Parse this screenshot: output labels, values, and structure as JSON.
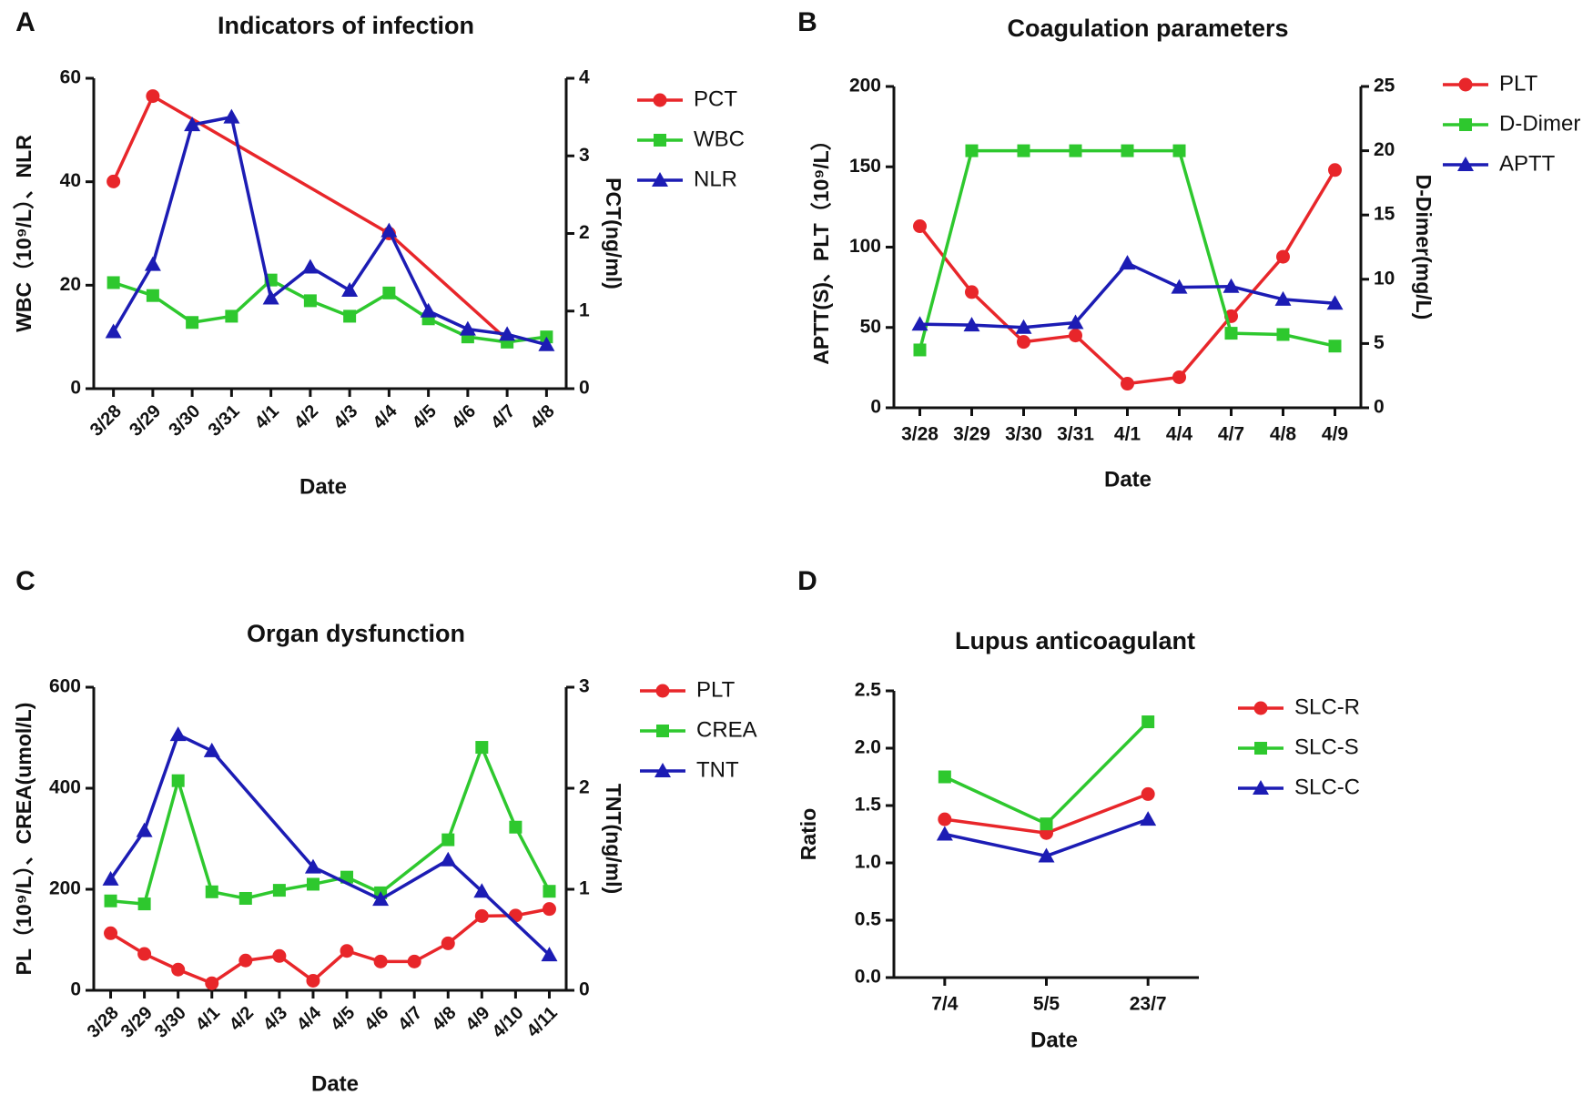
{
  "chart_data": [
    {
      "type": "line",
      "panel": "A",
      "title": "Indicators of infection",
      "x_label": "Date",
      "y_label": "WBC（10⁹/L）、NLR",
      "y2_label": "PCT(ng/ml)",
      "categories": [
        "3/28",
        "3/29",
        "3/30",
        "3/31",
        "4/1",
        "4/2",
        "4/3",
        "4/4",
        "4/5",
        "4/6",
        "4/7",
        "4/8"
      ],
      "ylim": [
        0,
        60
      ],
      "yticks": [
        0,
        20,
        40,
        60
      ],
      "y2lim": [
        0,
        4
      ],
      "y2ticks": [
        0,
        1,
        2,
        3,
        4
      ],
      "series": [
        {
          "name": "PCT",
          "color": "#e8262a",
          "marker": "circle",
          "axis": "y2",
          "values": [
            2.67,
            3.77,
            null,
            null,
            null,
            null,
            null,
            2.0,
            null,
            null,
            0.63,
            null
          ]
        },
        {
          "name": "WBC",
          "color": "#2ec82e",
          "marker": "square",
          "values": [
            20.5,
            18,
            12.8,
            14,
            21,
            17,
            14,
            18.5,
            13.5,
            10,
            9,
            10
          ]
        },
        {
          "name": "NLR",
          "color": "#1c1cb4",
          "marker": "triangle",
          "values": [
            11,
            24,
            51,
            52.5,
            17.5,
            23.5,
            19,
            30.5,
            15,
            11.5,
            10.5,
            8.5
          ]
        }
      ]
    },
    {
      "type": "line",
      "panel": "B",
      "title": "Coagulation parameters",
      "x_label": "Date",
      "y_label": "APTT(S)、PLT（10⁹/L）",
      "y2_label": "D-Dimer(mg/L)",
      "categories": [
        "3/28",
        "3/29",
        "3/30",
        "3/31",
        "4/1",
        "4/4",
        "4/7",
        "4/8",
        "4/9"
      ],
      "ylim": [
        0,
        200
      ],
      "yticks": [
        0,
        50,
        100,
        150,
        200
      ],
      "y2lim": [
        0,
        25
      ],
      "y2ticks": [
        0,
        5,
        10,
        15,
        20,
        25
      ],
      "series": [
        {
          "name": "PLT",
          "color": "#e8262a",
          "marker": "circle",
          "values": [
            113,
            72,
            41,
            45,
            15,
            19,
            57,
            94,
            148
          ]
        },
        {
          "name": "D-Dimer",
          "color": "#2ec82e",
          "marker": "square",
          "axis": "y2",
          "values": [
            4.5,
            20,
            20,
            20,
            20,
            20,
            5.8,
            5.7,
            4.8
          ]
        },
        {
          "name": "APTT",
          "color": "#1c1cb4",
          "marker": "triangle",
          "values": [
            52,
            51.5,
            50,
            53,
            90,
            75,
            75.5,
            67.5,
            65
          ]
        }
      ]
    },
    {
      "type": "line",
      "panel": "C",
      "title": "Organ dysfunction",
      "x_label": "Date",
      "y_label": "PL（10⁹/L）、CREA(umol/L)",
      "y2_label": "TNT(ng/ml)",
      "categories": [
        "3/28",
        "3/29",
        "3/30",
        "4/1",
        "4/2",
        "4/3",
        "4/4",
        "4/5",
        "4/6",
        "4/7",
        "4/8",
        "4/9",
        "4/10",
        "4/11"
      ],
      "ylim": [
        0,
        600
      ],
      "yticks": [
        0,
        200,
        400,
        600
      ],
      "y2lim": [
        0,
        3
      ],
      "y2ticks": [
        0,
        1,
        2,
        3
      ],
      "series": [
        {
          "name": "PLT",
          "color": "#e8262a",
          "marker": "circle",
          "values": [
            113,
            72,
            41,
            14,
            59,
            68,
            19,
            78,
            57,
            57,
            93,
            147,
            148,
            161
          ]
        },
        {
          "name": "CREA",
          "color": "#2ec82e",
          "marker": "square",
          "values": [
            177,
            171,
            415,
            195,
            182,
            198,
            210,
            224,
            193,
            null,
            298,
            481,
            323,
            196
          ]
        },
        {
          "name": "TNT",
          "color": "#1c1cb4",
          "marker": "triangle",
          "axis": "y2",
          "values": [
            1.1,
            1.58,
            2.53,
            2.37,
            null,
            null,
            1.22,
            null,
            0.9,
            null,
            1.29,
            0.98,
            null,
            0.35
          ]
        }
      ]
    },
    {
      "type": "line",
      "panel": "D",
      "title": "Lupus anticoagulant",
      "x_label": "Date",
      "y_label": "Ratio",
      "categories": [
        "7/4",
        "5/5",
        "23/7"
      ],
      "ylim": [
        0,
        2.5
      ],
      "yticks": [
        {
          "value": 0,
          "label": "0.0"
        },
        0.5,
        {
          "value": 1,
          "label": "1.0"
        },
        1.5,
        {
          "value": 2,
          "label": "2.0"
        },
        2.5
      ],
      "series": [
        {
          "name": "SLC-R",
          "color": "#e8262a",
          "marker": "circle",
          "values": [
            1.38,
            1.26,
            1.6
          ]
        },
        {
          "name": "SLC-S",
          "color": "#2ec82e",
          "marker": "square",
          "values": [
            1.75,
            1.34,
            2.23
          ]
        },
        {
          "name": "SLC-C",
          "color": "#1c1cb4",
          "marker": "triangle",
          "values": [
            1.25,
            1.06,
            1.38
          ]
        }
      ]
    }
  ]
}
